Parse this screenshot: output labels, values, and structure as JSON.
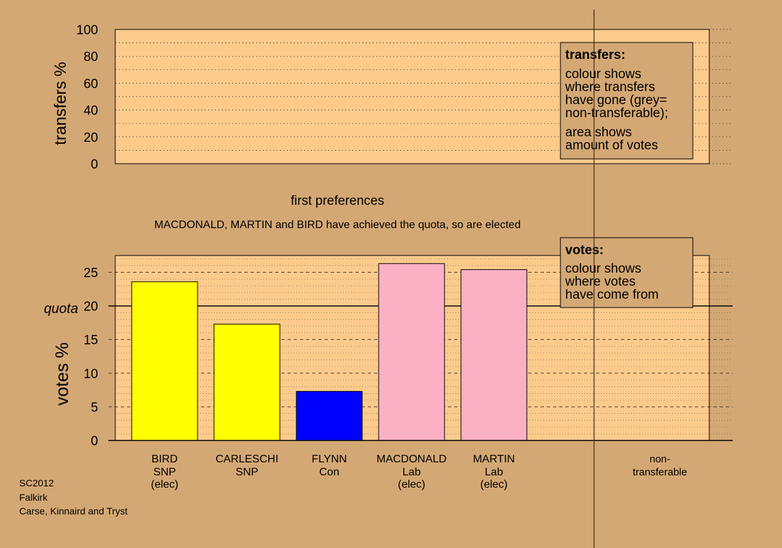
{
  "colors": {
    "background": "#d4a874",
    "panel": "#fccb8c",
    "snp": "#ffff00",
    "con": "#0000ff",
    "lab": "#fcb0c4",
    "gridline": "#5a4a3a"
  },
  "chart_data": [
    {
      "type": "bar",
      "ylabel": "transfers %",
      "ylim": [
        0,
        100
      ],
      "yticks": [
        0,
        20,
        40,
        60,
        80,
        100
      ],
      "categories": [],
      "values": [],
      "legend": {
        "title": "transfers:",
        "lines1": [
          "colour shows",
          "where transfers",
          "have gone (grey=",
          "non-transferable);"
        ],
        "lines2": [
          "area shows",
          "amount of votes"
        ]
      }
    },
    {
      "type": "bar",
      "title": "first preferences",
      "subtitle": "MACDONALD, MARTIN and BIRD have achieved the quota, so are elected",
      "ylabel": "votes %",
      "ylim": [
        0,
        27.5
      ],
      "yticks": [
        0,
        5,
        10,
        15,
        20,
        25
      ],
      "quota": {
        "value": 20,
        "label": "quota"
      },
      "categories": [
        {
          "name": "BIRD",
          "party": "SNP",
          "status": "(elec)"
        },
        {
          "name": "CARLESCHI",
          "party": "SNP",
          "status": ""
        },
        {
          "name": "FLYNN",
          "party": "Con",
          "status": ""
        },
        {
          "name": "MACDONALD",
          "party": "Lab",
          "status": "(elec)"
        },
        {
          "name": "MARTIN",
          "party": "Lab",
          "status": "(elec)"
        }
      ],
      "values": [
        23.6,
        17.3,
        7.3,
        26.3,
        25.4
      ],
      "bar_colors": [
        "#ffff00",
        "#ffff00",
        "#0000ff",
        "#fcb0c4",
        "#fcb0c4"
      ],
      "extra_category": {
        "line1": "non-",
        "line2": "transferable"
      },
      "legend": {
        "title": "votes:",
        "lines": [
          "colour shows",
          "where votes",
          "have come from"
        ]
      }
    }
  ],
  "footer": {
    "lines": [
      "SC2012",
      "Falkirk",
      "Carse, Kinnaird and Tryst"
    ]
  }
}
